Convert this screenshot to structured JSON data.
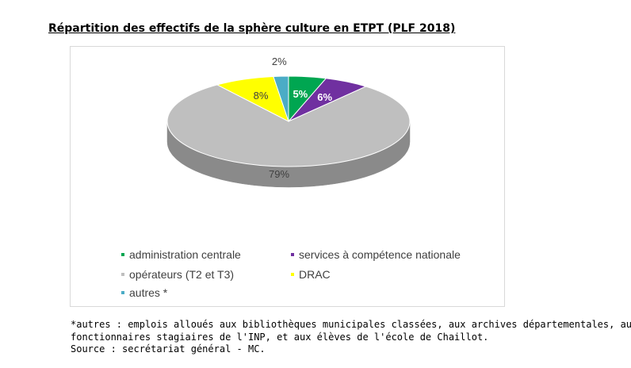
{
  "title": "Répartition des effectifs de la sphère culture en ETPT (PLF 2018)",
  "chart_data": {
    "type": "pie",
    "style": "3d",
    "title": "Répartition des effectifs de la sphère culture en ETPT (PLF 2018)",
    "unit": "%",
    "series": [
      {
        "name": "administration centrale",
        "value": 5,
        "label": "5%",
        "color": "#00a651"
      },
      {
        "name": "services à compétence nationale",
        "value": 6,
        "label": "6%",
        "color": "#7030a0"
      },
      {
        "name": "opérateurs (T2 et T3)",
        "value": 79,
        "label": "79%",
        "color": "#bfbfbf"
      },
      {
        "name": "DRAC",
        "value": 8,
        "label": "8%",
        "color": "#ffff00"
      },
      {
        "name": "autres *",
        "value": 2,
        "label": "2%",
        "color": "#4bacc6"
      }
    ]
  },
  "legend": {
    "items": [
      {
        "label": "administration centrale",
        "color": "#00a651"
      },
      {
        "label": "services à compétence nationale",
        "color": "#7030a0"
      },
      {
        "label": "opérateurs (T2 et T3)",
        "color": "#bfbfbf"
      },
      {
        "label": "DRAC",
        "color": "#ffff00"
      },
      {
        "label": "autres *",
        "color": "#4bacc6"
      }
    ]
  },
  "notes": {
    "line1": "*autres : emplois alloués aux bibliothèques municipales classées, aux archives départementales, aux",
    "line2": "fonctionnaires stagiaires de l'INP, et aux élèves de l'école de Chaillot.",
    "line3": "Source : secrétariat général - MC."
  }
}
